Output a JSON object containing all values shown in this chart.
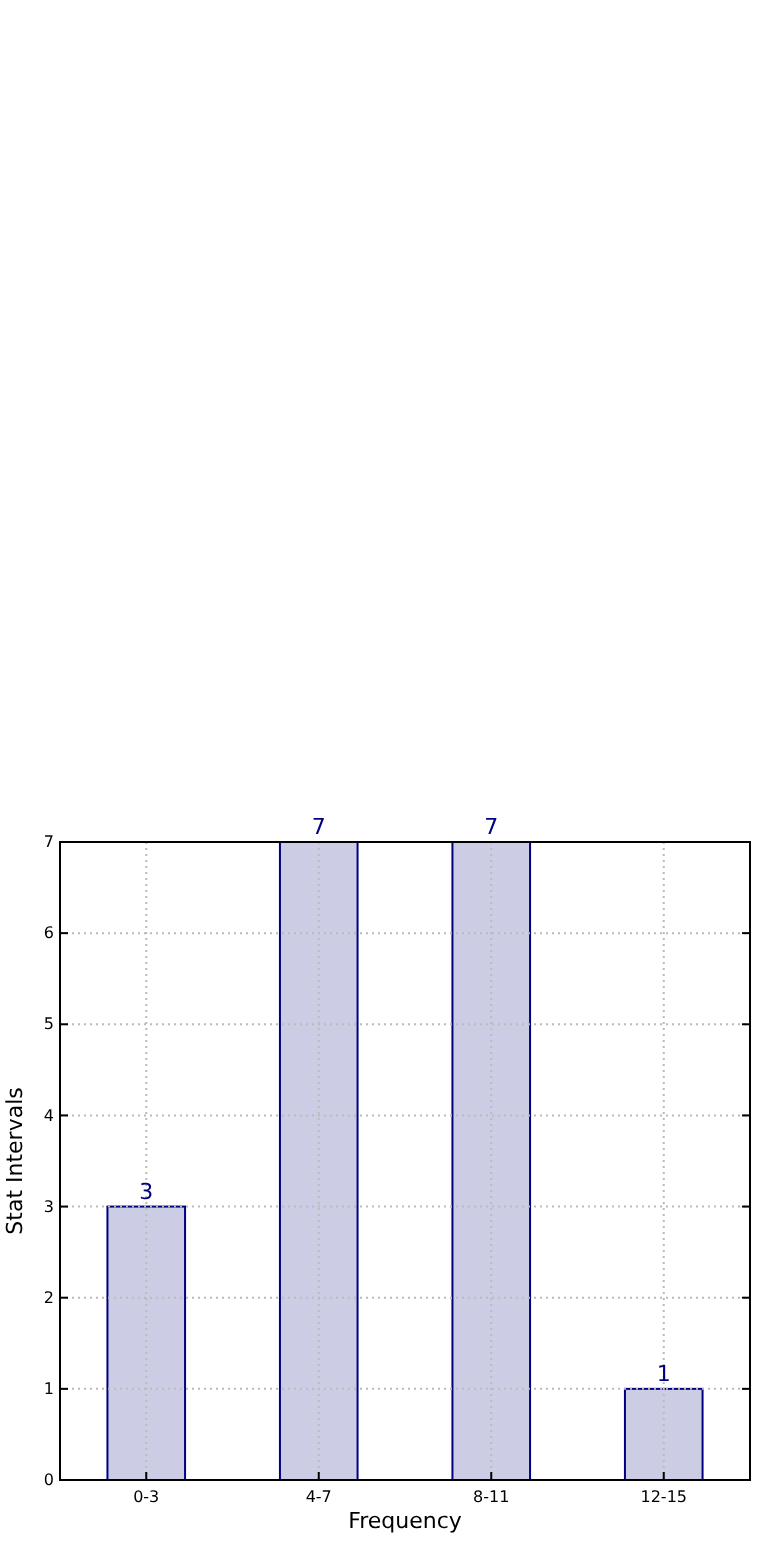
{
  "chart_data": {
    "type": "bar",
    "xlabel": "Frequency",
    "ylabel": "Stat Intervals",
    "categories": [
      "0-3",
      "4-7",
      "8-11",
      "12-15"
    ],
    "series": [
      {
        "color": "#ccccE5",
        "values": [
          3,
          7,
          7,
          1
        ]
      }
    ],
    "ylim": [
      0,
      7
    ],
    "yticks": [
      0,
      1,
      2,
      3,
      4,
      5,
      6,
      7
    ],
    "grid": true,
    "data_labels": true
  }
}
